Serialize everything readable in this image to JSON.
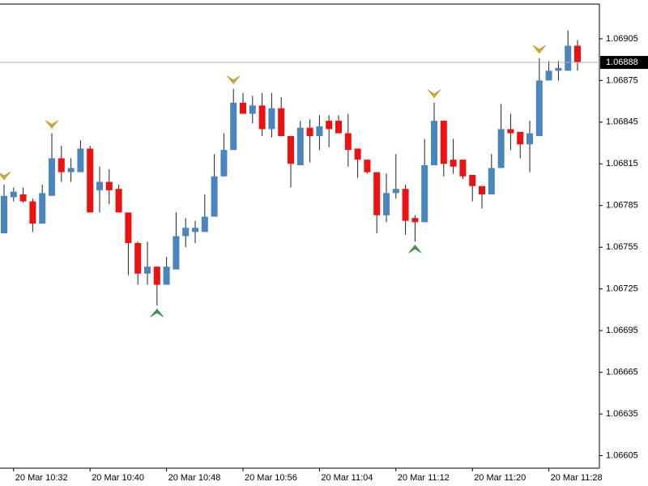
{
  "chart_data": {
    "type": "candlestick",
    "categories": [
      null,
      "20 Mar 10:32",
      null,
      null,
      null,
      null,
      null,
      null,
      null,
      "20 Mar 10:40",
      null,
      null,
      null,
      null,
      null,
      null,
      null,
      "20 Mar 10:48",
      null,
      null,
      null,
      null,
      null,
      null,
      null,
      "20 Mar 10:56",
      null,
      null,
      null,
      null,
      null,
      null,
      null,
      "20 Mar 11:04",
      null,
      null,
      null,
      null,
      null,
      null,
      null,
      "20 Mar 11:12",
      null,
      null,
      null,
      null,
      null,
      null,
      null,
      "20 Mar 11:20",
      null,
      null,
      null,
      null,
      null,
      null,
      null,
      "20 Mar 11:28",
      null,
      null,
      null
    ],
    "open": [
      1.06765,
      1.06791,
      1.06793,
      1.06788,
      1.06772,
      1.06792,
      1.06819,
      1.06809,
      1.06809,
      1.06826,
      1.06796,
      1.06802,
      1.06797,
      1.0678,
      1.06758,
      1.06736,
      1.06741,
      1.06728,
      1.06739,
      1.06763,
      1.06766,
      1.06766,
      1.06777,
      1.06806,
      1.06825,
      1.06859,
      1.06851,
      1.06857,
      1.0684,
      1.06855,
      1.06835,
      1.06814,
      1.06841,
      1.06835,
      1.06846,
      1.06846,
      1.06837,
      1.06826,
      1.06818,
      1.06809,
      1.06778,
      1.06794,
      1.06797,
      1.06776,
      1.06773,
      1.06814,
      1.06846,
      1.06818,
      1.06818,
      1.06807,
      1.06799,
      1.06793,
      1.06812,
      1.0684,
      1.06838,
      1.06829,
      1.06835,
      1.06875,
      1.06882,
      1.06882,
      1.069
    ],
    "high": [
      1.068,
      1.06798,
      1.06798,
      1.0679,
      1.068,
      1.06837,
      1.06828,
      1.06819,
      1.06832,
      1.06828,
      1.06813,
      1.06811,
      1.068,
      1.0678,
      1.06759,
      1.06759,
      1.06741,
      1.06748,
      1.0678,
      1.06776,
      1.06774,
      1.06793,
      1.06822,
      1.06837,
      1.06869,
      1.06866,
      1.06864,
      1.06866,
      1.06866,
      1.06863,
      1.06835,
      1.06846,
      1.06847,
      1.0685,
      1.0685,
      1.0685,
      1.06851,
      1.06826,
      1.06818,
      1.06809,
      1.06808,
      1.06822,
      1.068,
      1.06778,
      1.06833,
      1.06859,
      1.06846,
      1.06833,
      1.06818,
      1.06807,
      1.06799,
      1.06822,
      1.06858,
      1.06851,
      1.06838,
      1.06846,
      1.06891,
      1.06889,
      1.06889,
      1.06911,
      1.06904
    ],
    "low": [
      1.06765,
      1.06788,
      1.06787,
      1.06766,
      1.06772,
      1.06792,
      1.06802,
      1.06802,
      1.06809,
      1.0678,
      1.0678,
      1.06786,
      1.0678,
      1.06735,
      1.06728,
      1.06728,
      1.06713,
      1.06728,
      1.06739,
      1.06755,
      1.06758,
      1.06766,
      1.06777,
      1.06806,
      1.06825,
      1.06851,
      1.06844,
      1.06835,
      1.06834,
      1.06835,
      1.06798,
      1.06814,
      1.06816,
      1.06825,
      1.06827,
      1.06837,
      1.06813,
      1.06805,
      1.06808,
      1.06765,
      1.06773,
      1.0679,
      1.06764,
      1.06759,
      1.06773,
      1.06814,
      1.06806,
      1.06808,
      1.06804,
      1.06788,
      1.06783,
      1.06793,
      1.06812,
      1.06825,
      1.06819,
      1.06809,
      1.06835,
      1.06875,
      1.06875,
      1.06882,
      1.06882
    ],
    "close": [
      1.06792,
      1.06795,
      1.06788,
      1.06772,
      1.06794,
      1.06819,
      1.06809,
      1.06812,
      1.06826,
      1.0678,
      1.06802,
      1.06796,
      1.0678,
      1.06758,
      1.06736,
      1.06741,
      1.06728,
      1.06741,
      1.06763,
      1.06769,
      1.06769,
      1.06777,
      1.06806,
      1.06825,
      1.06859,
      1.06851,
      1.06857,
      1.0684,
      1.06855,
      1.06835,
      1.06815,
      1.06841,
      1.06835,
      1.06842,
      1.0684,
      1.06837,
      1.06825,
      1.06818,
      1.06809,
      1.06778,
      1.06794,
      1.06797,
      1.06774,
      1.06773,
      1.06814,
      1.06846,
      1.06815,
      1.06813,
      1.06806,
      1.06799,
      1.06793,
      1.06812,
      1.0684,
      1.06837,
      1.06829,
      1.06837,
      1.06875,
      1.06882,
      1.06884,
      1.069,
      1.06888
    ],
    "up_color": "#4a86bd",
    "down_color": "#ee1111",
    "fractal_up": [
      0,
      5,
      24,
      45,
      56
    ],
    "fractal_down": [
      16,
      43
    ],
    "current_price": 1.06888,
    "ylim": [
      1.06596,
      1.0693
    ],
    "yticks": [
      1.06605,
      1.06635,
      1.06665,
      1.06695,
      1.06725,
      1.06755,
      1.06785,
      1.06815,
      1.06845,
      1.06875,
      1.06905
    ]
  }
}
